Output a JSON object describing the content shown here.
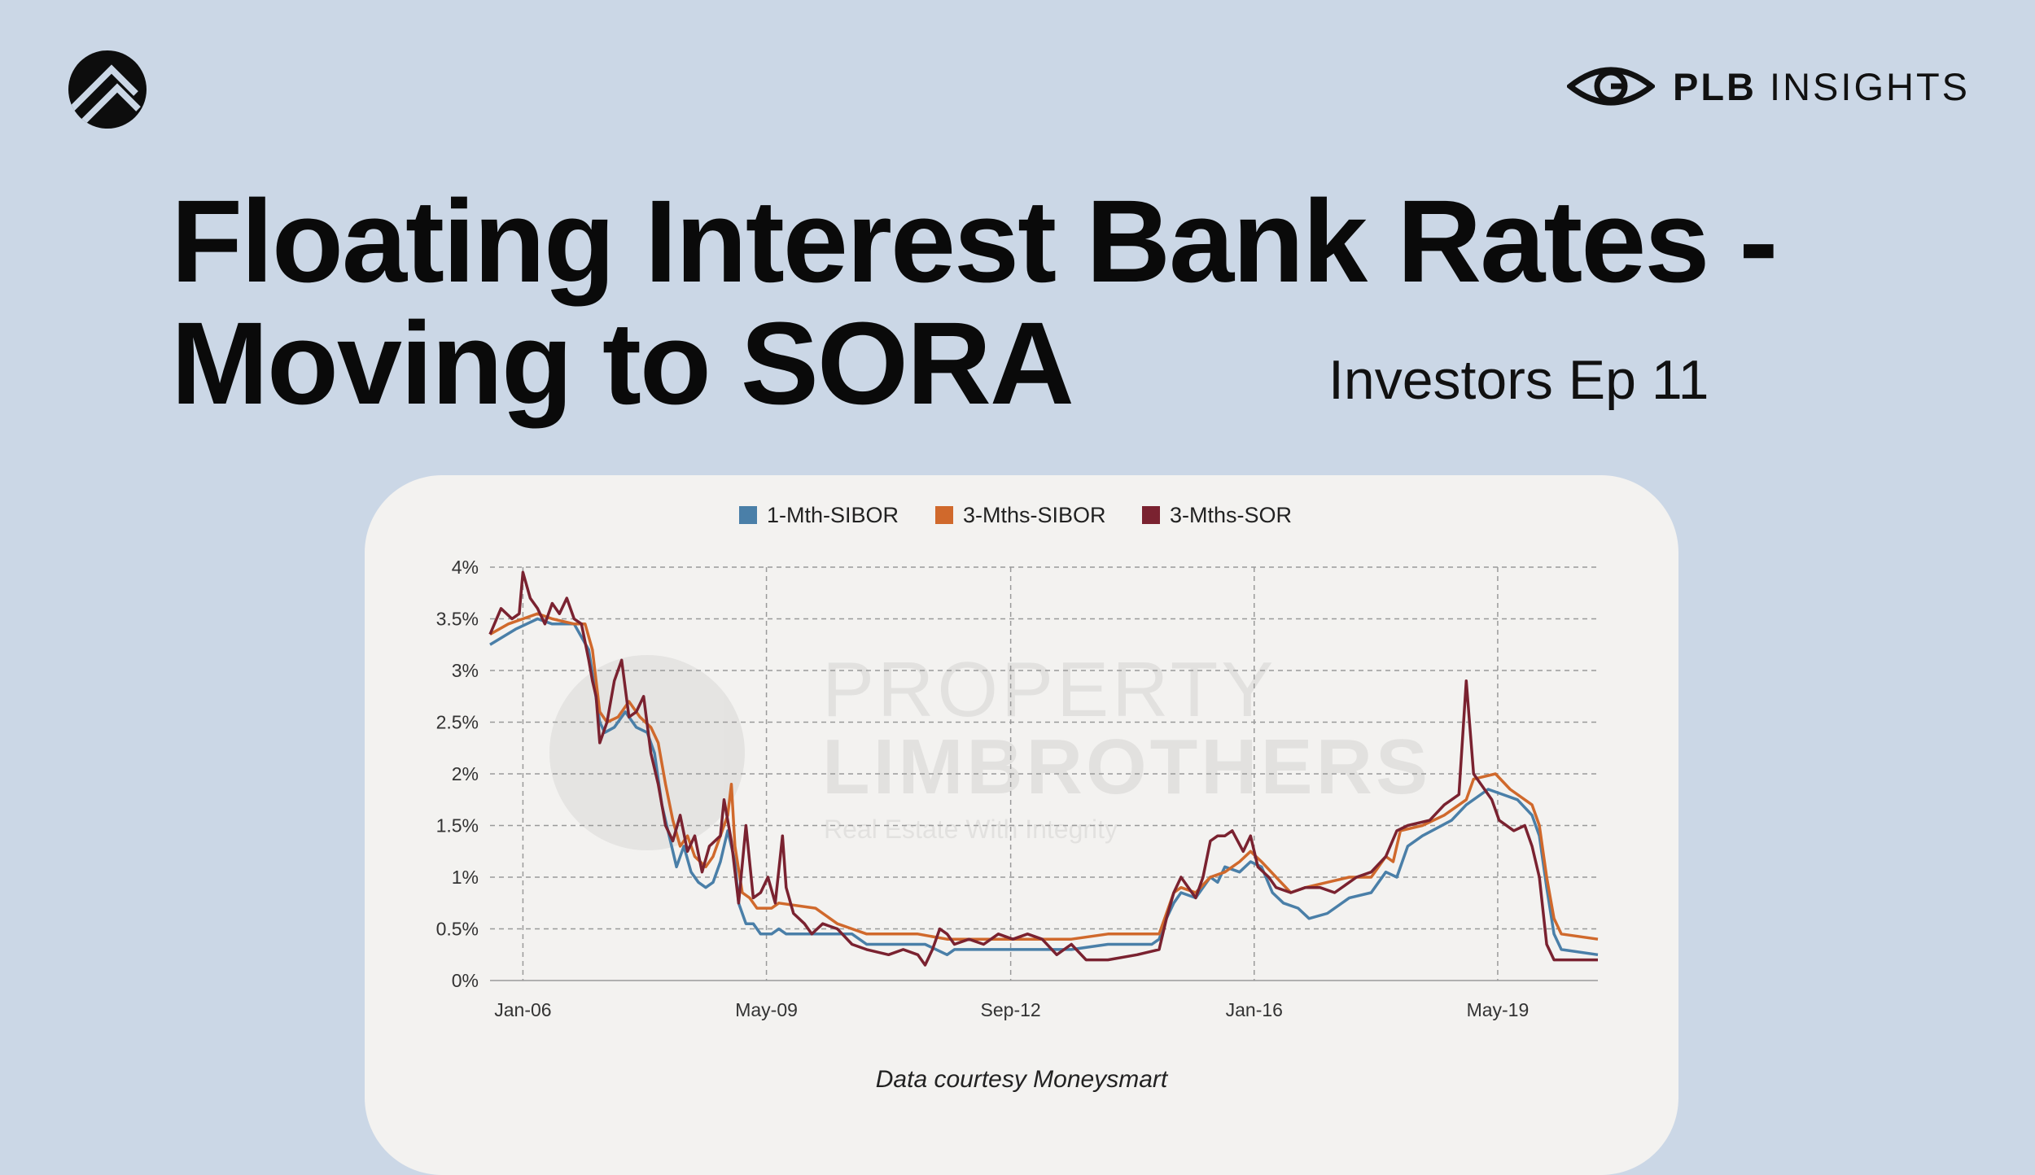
{
  "header": {
    "logo_icon": "stacked-chevrons-icon",
    "brand_icon": "eye-icon",
    "brand_bold": "PLB",
    "brand_light": "INSIGHTS"
  },
  "title": {
    "line1": "Floating Interest Bank Rates -",
    "line2": "Moving to SORA"
  },
  "subtitle": "Investors Ep 11",
  "watermark": {
    "line1": "PROPERTY",
    "line2": "LIMBROTHERS",
    "tagline": "Real Estate With Integrity"
  },
  "caption": "Data courtesy Moneysmart",
  "colors": {
    "background": "#cbd7e6",
    "card": "#f3f2f0",
    "sibor1m": "#4a7fa8",
    "sibor3m": "#d0692c",
    "sor3m": "#7a2230"
  },
  "chart_data": {
    "type": "line",
    "title": "",
    "xlabel": "",
    "ylabel": "",
    "x_tick_labels": [
      "Jan-06",
      "May-09",
      "Sep-12",
      "Jan-16",
      "May-19"
    ],
    "x_tick_values": [
      2006.0,
      2009.33,
      2012.67,
      2016.0,
      2019.33
    ],
    "xlim": [
      2005.55,
      2020.7
    ],
    "y_tick_labels": [
      "0%",
      "0.5%",
      "1%",
      "1.5%",
      "2%",
      "2.5%",
      "3%",
      "3.5%",
      "4%"
    ],
    "y_tick_values": [
      0,
      0.5,
      1,
      1.5,
      2,
      2.5,
      3,
      3.5,
      4
    ],
    "ylim": [
      0,
      4
    ],
    "grid": true,
    "legend_position": "top-center",
    "series": [
      {
        "name": "1-Mth-SIBOR",
        "color": "#4a7fa8",
        "points": [
          [
            2005.55,
            3.25
          ],
          [
            2005.9,
            3.4
          ],
          [
            2006.2,
            3.5
          ],
          [
            2006.4,
            3.45
          ],
          [
            2006.7,
            3.45
          ],
          [
            2006.9,
            3.2
          ],
          [
            2007.05,
            2.5
          ],
          [
            2007.12,
            2.4
          ],
          [
            2007.25,
            2.45
          ],
          [
            2007.4,
            2.6
          ],
          [
            2007.55,
            2.45
          ],
          [
            2007.7,
            2.4
          ],
          [
            2007.8,
            2.2
          ],
          [
            2007.9,
            1.7
          ],
          [
            2008.0,
            1.4
          ],
          [
            2008.1,
            1.1
          ],
          [
            2008.2,
            1.3
          ],
          [
            2008.3,
            1.05
          ],
          [
            2008.4,
            0.95
          ],
          [
            2008.5,
            0.9
          ],
          [
            2008.6,
            0.95
          ],
          [
            2008.7,
            1.15
          ],
          [
            2008.8,
            1.45
          ],
          [
            2008.9,
            1.15
          ],
          [
            2008.95,
            0.75
          ],
          [
            2009.05,
            0.55
          ],
          [
            2009.15,
            0.55
          ],
          [
            2009.25,
            0.45
          ],
          [
            2009.4,
            0.45
          ],
          [
            2009.5,
            0.5
          ],
          [
            2009.6,
            0.45
          ],
          [
            2010.5,
            0.45
          ],
          [
            2010.7,
            0.35
          ],
          [
            2011.5,
            0.35
          ],
          [
            2011.8,
            0.25
          ],
          [
            2011.9,
            0.3
          ],
          [
            2013.5,
            0.3
          ],
          [
            2014.0,
            0.35
          ],
          [
            2014.6,
            0.35
          ],
          [
            2014.7,
            0.4
          ],
          [
            2014.8,
            0.6
          ],
          [
            2014.9,
            0.75
          ],
          [
            2015.0,
            0.85
          ],
          [
            2015.2,
            0.8
          ],
          [
            2015.4,
            1.0
          ],
          [
            2015.5,
            0.95
          ],
          [
            2015.6,
            1.1
          ],
          [
            2015.8,
            1.05
          ],
          [
            2015.95,
            1.15
          ],
          [
            2016.1,
            1.1
          ],
          [
            2016.25,
            0.85
          ],
          [
            2016.4,
            0.75
          ],
          [
            2016.6,
            0.7
          ],
          [
            2016.75,
            0.6
          ],
          [
            2017.0,
            0.65
          ],
          [
            2017.3,
            0.8
          ],
          [
            2017.6,
            0.85
          ],
          [
            2017.8,
            1.05
          ],
          [
            2017.95,
            1.0
          ],
          [
            2018.1,
            1.3
          ],
          [
            2018.3,
            1.4
          ],
          [
            2018.7,
            1.55
          ],
          [
            2018.9,
            1.7
          ],
          [
            2019.2,
            1.85
          ],
          [
            2019.4,
            1.8
          ],
          [
            2019.6,
            1.75
          ],
          [
            2019.8,
            1.6
          ],
          [
            2019.9,
            1.4
          ],
          [
            2020.0,
            0.9
          ],
          [
            2020.1,
            0.45
          ],
          [
            2020.2,
            0.3
          ],
          [
            2020.7,
            0.25
          ]
        ]
      },
      {
        "name": "3-Mths-SIBOR",
        "color": "#d0692c",
        "points": [
          [
            2005.55,
            3.35
          ],
          [
            2005.8,
            3.45
          ],
          [
            2006.0,
            3.5
          ],
          [
            2006.2,
            3.55
          ],
          [
            2006.4,
            3.5
          ],
          [
            2006.7,
            3.45
          ],
          [
            2006.85,
            3.45
          ],
          [
            2006.95,
            3.2
          ],
          [
            2007.05,
            2.6
          ],
          [
            2007.15,
            2.5
          ],
          [
            2007.3,
            2.55
          ],
          [
            2007.45,
            2.7
          ],
          [
            2007.6,
            2.55
          ],
          [
            2007.75,
            2.45
          ],
          [
            2007.85,
            2.3
          ],
          [
            2007.95,
            1.9
          ],
          [
            2008.05,
            1.55
          ],
          [
            2008.15,
            1.3
          ],
          [
            2008.25,
            1.4
          ],
          [
            2008.35,
            1.2
          ],
          [
            2008.5,
            1.1
          ],
          [
            2008.6,
            1.2
          ],
          [
            2008.7,
            1.4
          ],
          [
            2008.8,
            1.6
          ],
          [
            2008.85,
            1.9
          ],
          [
            2008.9,
            1.3
          ],
          [
            2009.0,
            0.85
          ],
          [
            2009.1,
            0.8
          ],
          [
            2009.2,
            0.7
          ],
          [
            2009.4,
            0.7
          ],
          [
            2009.5,
            0.75
          ],
          [
            2010.0,
            0.7
          ],
          [
            2010.3,
            0.55
          ],
          [
            2010.5,
            0.5
          ],
          [
            2010.7,
            0.45
          ],
          [
            2011.4,
            0.45
          ],
          [
            2011.8,
            0.4
          ],
          [
            2011.9,
            0.4
          ],
          [
            2013.0,
            0.4
          ],
          [
            2013.5,
            0.4
          ],
          [
            2014.0,
            0.45
          ],
          [
            2014.7,
            0.45
          ],
          [
            2014.8,
            0.65
          ],
          [
            2014.9,
            0.85
          ],
          [
            2015.0,
            0.9
          ],
          [
            2015.2,
            0.85
          ],
          [
            2015.4,
            1.0
          ],
          [
            2015.6,
            1.05
          ],
          [
            2015.8,
            1.15
          ],
          [
            2015.95,
            1.25
          ],
          [
            2016.1,
            1.15
          ],
          [
            2016.3,
            1.0
          ],
          [
            2016.5,
            0.85
          ],
          [
            2016.7,
            0.9
          ],
          [
            2017.0,
            0.95
          ],
          [
            2017.3,
            1.0
          ],
          [
            2017.6,
            1.0
          ],
          [
            2017.8,
            1.2
          ],
          [
            2017.9,
            1.15
          ],
          [
            2018.0,
            1.45
          ],
          [
            2018.3,
            1.5
          ],
          [
            2018.6,
            1.6
          ],
          [
            2018.9,
            1.75
          ],
          [
            2019.0,
            1.95
          ],
          [
            2019.3,
            2.0
          ],
          [
            2019.5,
            1.85
          ],
          [
            2019.8,
            1.7
          ],
          [
            2019.9,
            1.5
          ],
          [
            2020.0,
            1.0
          ],
          [
            2020.1,
            0.6
          ],
          [
            2020.2,
            0.45
          ],
          [
            2020.7,
            0.4
          ]
        ]
      },
      {
        "name": "3-Mths-SOR",
        "color": "#7a2230",
        "points": [
          [
            2005.55,
            3.35
          ],
          [
            2005.7,
            3.6
          ],
          [
            2005.85,
            3.5
          ],
          [
            2005.95,
            3.55
          ],
          [
            2006.0,
            3.95
          ],
          [
            2006.1,
            3.7
          ],
          [
            2006.2,
            3.6
          ],
          [
            2006.3,
            3.45
          ],
          [
            2006.4,
            3.65
          ],
          [
            2006.5,
            3.55
          ],
          [
            2006.6,
            3.7
          ],
          [
            2006.7,
            3.5
          ],
          [
            2006.8,
            3.45
          ],
          [
            2006.9,
            3.1
          ],
          [
            2006.95,
            2.9
          ],
          [
            2007.0,
            2.75
          ],
          [
            2007.05,
            2.3
          ],
          [
            2007.15,
            2.5
          ],
          [
            2007.25,
            2.9
          ],
          [
            2007.35,
            3.1
          ],
          [
            2007.45,
            2.55
          ],
          [
            2007.55,
            2.6
          ],
          [
            2007.65,
            2.75
          ],
          [
            2007.75,
            2.2
          ],
          [
            2007.85,
            1.9
          ],
          [
            2007.95,
            1.5
          ],
          [
            2008.05,
            1.35
          ],
          [
            2008.15,
            1.6
          ],
          [
            2008.25,
            1.25
          ],
          [
            2008.35,
            1.4
          ],
          [
            2008.45,
            1.05
          ],
          [
            2008.55,
            1.3
          ],
          [
            2008.7,
            1.4
          ],
          [
            2008.75,
            1.75
          ],
          [
            2008.85,
            1.35
          ],
          [
            2008.95,
            0.75
          ],
          [
            2009.05,
            1.5
          ],
          [
            2009.15,
            0.8
          ],
          [
            2009.25,
            0.85
          ],
          [
            2009.35,
            1.0
          ],
          [
            2009.45,
            0.75
          ],
          [
            2009.55,
            1.4
          ],
          [
            2009.6,
            0.9
          ],
          [
            2009.7,
            0.65
          ],
          [
            2009.85,
            0.55
          ],
          [
            2009.95,
            0.45
          ],
          [
            2010.1,
            0.55
          ],
          [
            2010.3,
            0.5
          ],
          [
            2010.5,
            0.35
          ],
          [
            2010.7,
            0.3
          ],
          [
            2011.0,
            0.25
          ],
          [
            2011.2,
            0.3
          ],
          [
            2011.4,
            0.25
          ],
          [
            2011.5,
            0.15
          ],
          [
            2011.6,
            0.3
          ],
          [
            2011.7,
            0.5
          ],
          [
            2011.8,
            0.45
          ],
          [
            2011.9,
            0.35
          ],
          [
            2012.1,
            0.4
          ],
          [
            2012.3,
            0.35
          ],
          [
            2012.5,
            0.45
          ],
          [
            2012.7,
            0.4
          ],
          [
            2012.9,
            0.45
          ],
          [
            2013.1,
            0.4
          ],
          [
            2013.3,
            0.25
          ],
          [
            2013.5,
            0.35
          ],
          [
            2013.7,
            0.2
          ],
          [
            2014.0,
            0.2
          ],
          [
            2014.4,
            0.25
          ],
          [
            2014.7,
            0.3
          ],
          [
            2014.8,
            0.6
          ],
          [
            2014.9,
            0.85
          ],
          [
            2015.0,
            1.0
          ],
          [
            2015.1,
            0.9
          ],
          [
            2015.2,
            0.8
          ],
          [
            2015.3,
            1.0
          ],
          [
            2015.4,
            1.35
          ],
          [
            2015.5,
            1.4
          ],
          [
            2015.6,
            1.4
          ],
          [
            2015.7,
            1.45
          ],
          [
            2015.85,
            1.25
          ],
          [
            2015.95,
            1.4
          ],
          [
            2016.05,
            1.1
          ],
          [
            2016.2,
            1.0
          ],
          [
            2016.3,
            0.9
          ],
          [
            2016.5,
            0.85
          ],
          [
            2016.7,
            0.9
          ],
          [
            2016.9,
            0.9
          ],
          [
            2017.1,
            0.85
          ],
          [
            2017.4,
            1.0
          ],
          [
            2017.6,
            1.05
          ],
          [
            2017.8,
            1.2
          ],
          [
            2017.95,
            1.45
          ],
          [
            2018.1,
            1.5
          ],
          [
            2018.4,
            1.55
          ],
          [
            2018.6,
            1.7
          ],
          [
            2018.8,
            1.8
          ],
          [
            2018.9,
            2.9
          ],
          [
            2019.0,
            2.0
          ],
          [
            2019.1,
            1.9
          ],
          [
            2019.25,
            1.75
          ],
          [
            2019.35,
            1.55
          ],
          [
            2019.55,
            1.45
          ],
          [
            2019.7,
            1.5
          ],
          [
            2019.8,
            1.3
          ],
          [
            2019.9,
            1.0
          ],
          [
            2020.0,
            0.35
          ],
          [
            2020.1,
            0.2
          ],
          [
            2020.3,
            0.2
          ],
          [
            2020.7,
            0.2
          ]
        ]
      }
    ]
  }
}
